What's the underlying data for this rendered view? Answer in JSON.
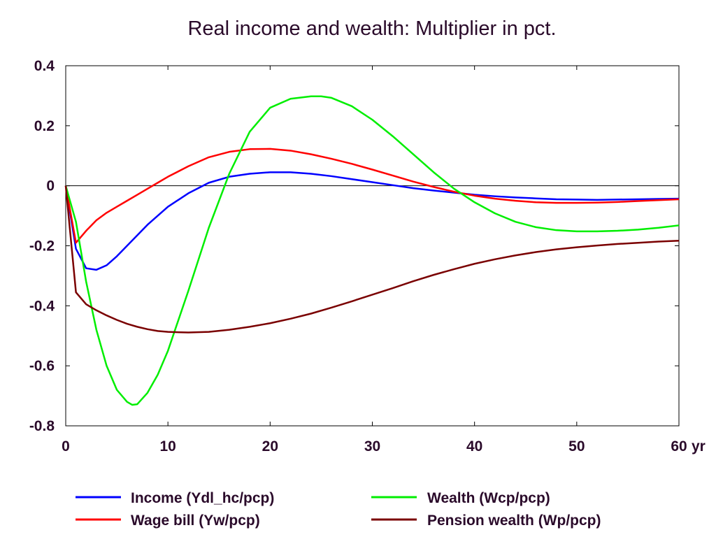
{
  "chart_data": {
    "type": "line",
    "title": "Real income and wealth: Multiplier in pct.",
    "xlabel": "",
    "ylabel": "",
    "x_unit_label": "yr",
    "xlim": [
      0,
      60
    ],
    "ylim": [
      -0.8,
      0.4
    ],
    "x_ticks": [
      "0",
      "10",
      "20",
      "30",
      "40",
      "50",
      "60"
    ],
    "y_ticks": [
      "0.4",
      "0.2",
      "0",
      "-0.2",
      "-0.4",
      "-0.6",
      "-0.8"
    ],
    "zero_line": true,
    "grid": false,
    "legend_position": "bottom",
    "series": [
      {
        "name": "Income (Ydl_hc/pcp)",
        "color": "#0000ff",
        "x": [
          0,
          1,
          2,
          3,
          4,
          5,
          6,
          7,
          8,
          9,
          10,
          12,
          14,
          16,
          18,
          20,
          22,
          24,
          26,
          28,
          30,
          32,
          34,
          36,
          38,
          40,
          42,
          44,
          46,
          48,
          50,
          52,
          54,
          56,
          58,
          60
        ],
        "values": [
          0,
          -0.21,
          -0.275,
          -0.28,
          -0.265,
          -0.235,
          -0.2,
          -0.165,
          -0.13,
          -0.1,
          -0.07,
          -0.025,
          0.01,
          0.03,
          0.04,
          0.045,
          0.045,
          0.04,
          0.032,
          0.022,
          0.012,
          0.002,
          -0.008,
          -0.016,
          -0.023,
          -0.03,
          -0.035,
          -0.039,
          -0.042,
          -0.045,
          -0.046,
          -0.047,
          -0.046,
          -0.045,
          -0.044,
          -0.043
        ]
      },
      {
        "name": "Wage bill (Yw/pcp)",
        "color": "#ff0000",
        "x": [
          0,
          1,
          2,
          3,
          4,
          5,
          6,
          7,
          8,
          9,
          10,
          12,
          14,
          16,
          18,
          20,
          22,
          24,
          26,
          28,
          30,
          32,
          34,
          36,
          38,
          40,
          42,
          44,
          46,
          48,
          50,
          52,
          54,
          56,
          58,
          60
        ],
        "values": [
          0,
          -0.19,
          -0.15,
          -0.115,
          -0.09,
          -0.07,
          -0.05,
          -0.03,
          -0.01,
          0.01,
          0.03,
          0.065,
          0.095,
          0.113,
          0.122,
          0.123,
          0.117,
          0.105,
          0.09,
          0.073,
          0.054,
          0.034,
          0.014,
          -0.004,
          -0.02,
          -0.033,
          -0.043,
          -0.05,
          -0.055,
          -0.057,
          -0.057,
          -0.056,
          -0.054,
          -0.051,
          -0.048,
          -0.045
        ]
      },
      {
        "name": "Wealth (Wcp/pcp)",
        "color": "#00ee00",
        "x": [
          0,
          1,
          2,
          3,
          4,
          5,
          6,
          6.5,
          7,
          8,
          9,
          10,
          12,
          14,
          16,
          18,
          20,
          22,
          24,
          25,
          26,
          28,
          30,
          32,
          34,
          36,
          38,
          40,
          42,
          44,
          46,
          48,
          50,
          52,
          54,
          56,
          58,
          60
        ],
        "values": [
          0,
          -0.12,
          -0.32,
          -0.48,
          -0.6,
          -0.68,
          -0.72,
          -0.73,
          -0.728,
          -0.69,
          -0.63,
          -0.55,
          -0.35,
          -0.14,
          0.04,
          0.18,
          0.26,
          0.29,
          0.298,
          0.298,
          0.293,
          0.265,
          0.22,
          0.165,
          0.105,
          0.045,
          -0.01,
          -0.055,
          -0.092,
          -0.12,
          -0.138,
          -0.148,
          -0.152,
          -0.152,
          -0.15,
          -0.146,
          -0.14,
          -0.132
        ]
      },
      {
        "name": "Pension wealth (Wp/pcp)",
        "color": "#7a0000",
        "x": [
          0,
          1,
          2,
          3,
          4,
          5,
          6,
          7,
          8,
          9,
          10,
          12,
          14,
          16,
          18,
          20,
          22,
          24,
          26,
          28,
          30,
          32,
          34,
          36,
          38,
          40,
          42,
          44,
          46,
          48,
          50,
          52,
          54,
          56,
          58,
          60
        ],
        "values": [
          0,
          -0.355,
          -0.395,
          -0.415,
          -0.432,
          -0.447,
          -0.46,
          -0.47,
          -0.478,
          -0.484,
          -0.487,
          -0.489,
          -0.487,
          -0.48,
          -0.47,
          -0.458,
          -0.443,
          -0.426,
          -0.406,
          -0.385,
          -0.363,
          -0.341,
          -0.318,
          -0.297,
          -0.278,
          -0.26,
          -0.245,
          -0.232,
          -0.221,
          -0.212,
          -0.205,
          -0.199,
          -0.194,
          -0.19,
          -0.186,
          -0.183
        ]
      }
    ]
  }
}
